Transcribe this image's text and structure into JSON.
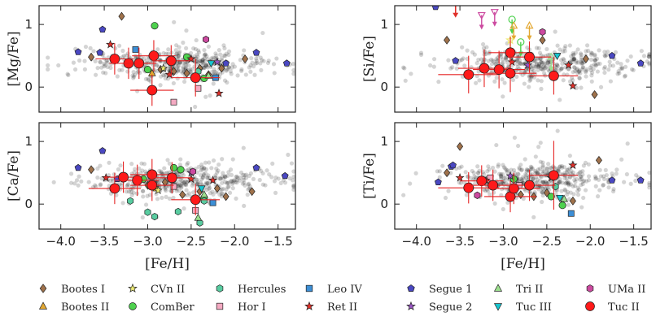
{
  "chart_data": {
    "type": "scatter",
    "x_label": "[Fe/H]",
    "x_range": [
      -4.25,
      -1.3
    ],
    "y_range": [
      -0.4,
      1.3
    ],
    "x_ticks": [
      -4.0,
      -3.5,
      -3.0,
      -2.5,
      -2.0,
      -1.5
    ],
    "x_tick_labels": [
      "−4.0",
      "−3.5",
      "−3.0",
      "−2.5",
      "−2.0",
      "−1.5"
    ],
    "y_ticks": [
      0,
      1
    ],
    "y_tick_labels": [
      "0",
      "1"
    ],
    "legend": [
      {
        "name": "Bootes I",
        "marker": "diamond",
        "color": "#a0724b"
      },
      {
        "name": "Bootes II",
        "marker": "triangle-up",
        "color": "#e3a832"
      },
      {
        "name": "CVn II",
        "marker": "star",
        "color": "#ecea74"
      },
      {
        "name": "ComBer",
        "marker": "circle",
        "color": "#4ed14e"
      },
      {
        "name": "Hercules",
        "marker": "hexagon",
        "color": "#58cca0"
      },
      {
        "name": "Hor I",
        "marker": "square",
        "color": "#f4aac2"
      },
      {
        "name": "Leo IV",
        "marker": "square",
        "color": "#3d8fd6"
      },
      {
        "name": "Ret II",
        "marker": "star",
        "color": "#e0302a"
      },
      {
        "name": "Segue 1",
        "marker": "pentagon",
        "color": "#4a48c2"
      },
      {
        "name": "Segue 2",
        "marker": "star",
        "color": "#9a55c4"
      },
      {
        "name": "Tri II",
        "marker": "triangle-up",
        "color": "#9ce08e"
      },
      {
        "name": "Tuc III",
        "marker": "triangle-down",
        "color": "#18c6cf"
      },
      {
        "name": "UMa II",
        "marker": "hexagon",
        "color": "#cc4aa0"
      },
      {
        "name": "Tuc II",
        "marker": "circle",
        "color": "#ff1a1a"
      }
    ],
    "background_seed": 7,
    "panels": [
      {
        "id": "mg",
        "y_label": "[Mg/Fe]",
        "tuc_ii": [
          {
            "x": -3.38,
            "y": 0.45,
            "xerr": 0.22,
            "yerr": 0.25
          },
          {
            "x": -3.22,
            "y": 0.38,
            "xerr": 0.22,
            "yerr": 0.25
          },
          {
            "x": -3.1,
            "y": 0.38,
            "xerr": 0.2,
            "yerr": 0.25
          },
          {
            "x": -2.93,
            "y": 0.5,
            "xerr": 0.25,
            "yerr": 0.25
          },
          {
            "x": -2.73,
            "y": 0.42,
            "xerr": 0.22,
            "yerr": 0.25
          },
          {
            "x": -2.45,
            "y": 0.15,
            "xerr": 0.28,
            "yerr": 0.3
          },
          {
            "x": -2.95,
            "y": -0.05,
            "xerr": 0.25,
            "yerr": 0.25
          }
        ],
        "others": [
          {
            "s": "Bootes I",
            "x": -3.3,
            "y": 1.13
          },
          {
            "s": "Bootes I",
            "x": -3.65,
            "y": 0.48
          },
          {
            "s": "Bootes I",
            "x": -2.85,
            "y": 0.28
          },
          {
            "s": "Bootes I",
            "x": -2.7,
            "y": 0.25
          },
          {
            "s": "Bootes I",
            "x": -2.55,
            "y": 0.22
          },
          {
            "s": "Bootes I",
            "x": -2.4,
            "y": 0.3
          },
          {
            "s": "Bootes I",
            "x": -2.3,
            "y": 0.2
          },
          {
            "s": "Bootes I",
            "x": -2.15,
            "y": 0.3
          },
          {
            "s": "Bootes I",
            "x": -1.88,
            "y": 0.45
          },
          {
            "s": "Bootes II",
            "x": -2.95,
            "y": 0.22
          },
          {
            "s": "CVn II",
            "x": -2.82,
            "y": 0.3
          },
          {
            "s": "ComBer",
            "x": -2.92,
            "y": 0.98
          },
          {
            "s": "ComBer",
            "x": -2.55,
            "y": 0.48
          },
          {
            "s": "ComBer",
            "x": -2.35,
            "y": 0.14
          },
          {
            "s": "ComBer",
            "x": -3.0,
            "y": 0.28
          },
          {
            "s": "Hercules",
            "x": -2.42,
            "y": 0.25
          },
          {
            "s": "Hor I",
            "x": -2.42,
            "y": -0.02
          },
          {
            "s": "Hor I",
            "x": -2.7,
            "y": -0.24
          },
          {
            "s": "Leo IV",
            "x": -3.14,
            "y": 0.6
          },
          {
            "s": "Leo IV",
            "x": -2.22,
            "y": 0.15
          },
          {
            "s": "Ret II",
            "x": -3.43,
            "y": 0.68
          },
          {
            "s": "Ret II",
            "x": -2.18,
            "y": -0.1
          },
          {
            "s": "Ret II",
            "x": -2.75,
            "y": 0.2
          },
          {
            "s": "Ret II",
            "x": -2.5,
            "y": 0.45
          },
          {
            "s": "Segue 1",
            "x": -3.8,
            "y": 0.56
          },
          {
            "s": "Segue 1",
            "x": -3.52,
            "y": 0.92
          },
          {
            "s": "Segue 1",
            "x": -3.55,
            "y": 0.55
          },
          {
            "s": "Segue 1",
            "x": -2.1,
            "y": 0.38
          },
          {
            "s": "Segue 1",
            "x": -1.75,
            "y": 0.55
          },
          {
            "s": "Segue 1",
            "x": -1.4,
            "y": 0.38
          },
          {
            "s": "Segue 2",
            "x": -2.2,
            "y": 0.4
          },
          {
            "s": "Tri II",
            "x": -2.3,
            "y": 0.18
          },
          {
            "s": "Tuc III",
            "x": -2.27,
            "y": 0.38
          },
          {
            "s": "UMa II",
            "x": -2.33,
            "y": 0.76
          }
        ]
      },
      {
        "id": "si",
        "y_label": "[Si/Fe]",
        "tuc_ii": [
          {
            "x": -3.4,
            "y": 0.2,
            "xerr": 0.35,
            "yerr": 0.3
          },
          {
            "x": -3.22,
            "y": 0.3,
            "xerr": 0.3,
            "yerr": 0.3
          },
          {
            "x": -3.05,
            "y": 0.28,
            "xerr": 0.3,
            "yerr": 0.3
          },
          {
            "x": -2.92,
            "y": 0.55,
            "xerr": 0.25,
            "yerr": 0.25
          },
          {
            "x": -2.7,
            "y": 0.48,
            "xerr": 0.25,
            "yerr": 0.25
          },
          {
            "x": -2.92,
            "y": 0.22,
            "xerr": 0.3,
            "yerr": 0.3
          },
          {
            "x": -2.42,
            "y": 0.18,
            "xerr": 0.28,
            "yerr": 0.3
          }
        ],
        "others": [
          {
            "s": "Bootes I",
            "x": -3.65,
            "y": 0.75
          },
          {
            "s": "Bootes I",
            "x": -2.55,
            "y": 0.75
          },
          {
            "s": "Bootes I",
            "x": -2.05,
            "y": 0.45
          },
          {
            "s": "Bootes I",
            "x": -1.95,
            "y": -0.12
          },
          {
            "s": "Ret II",
            "x": -2.2,
            "y": 0.02
          },
          {
            "s": "Ret II",
            "x": -2.25,
            "y": 0.35
          },
          {
            "s": "Ret II",
            "x": -2.9,
            "y": 0.4
          },
          {
            "s": "Segue 1",
            "x": -3.78,
            "y": 1.28
          },
          {
            "s": "Segue 1",
            "x": -3.55,
            "y": 0.42
          },
          {
            "s": "Segue 1",
            "x": -1.75,
            "y": 0.5
          },
          {
            "s": "Segue 1",
            "x": -1.42,
            "y": 0.38
          },
          {
            "s": "Segue 2",
            "x": -2.72,
            "y": 0.35
          },
          {
            "s": "UMa II",
            "x": -2.55,
            "y": 0.88
          },
          {
            "s": "Tuc III",
            "x": -2.38,
            "y": 0.5
          }
        ],
        "upper_limits": [
          {
            "x": -3.55,
            "y": 1.2,
            "color": "#e0302a",
            "marker": "arrow"
          },
          {
            "x": -3.25,
            "y": 1.15,
            "color": "#cc4aa0",
            "marker": "triangle-down"
          },
          {
            "x": -3.1,
            "y": 1.2,
            "color": "#cc4aa0",
            "marker": "triangle-down"
          },
          {
            "x": -2.9,
            "y": 1.08,
            "color": "#4ed14e",
            "marker": "circle"
          },
          {
            "x": -2.88,
            "y": 0.98,
            "color": "#e3a832",
            "marker": "triangle-up"
          },
          {
            "x": -2.7,
            "y": 0.98,
            "color": "#e3a832",
            "marker": "triangle-up"
          },
          {
            "x": -2.92,
            "y": 0.75,
            "color": "#ecea74",
            "marker": "star"
          },
          {
            "x": -2.8,
            "y": 0.72,
            "color": "#4ed14e",
            "marker": "circle"
          },
          {
            "x": -2.45,
            "y": 0.48,
            "color": "#9ce08e",
            "marker": "triangle-up"
          }
        ]
      },
      {
        "id": "ca",
        "y_label": "[Ca/Fe]",
        "tuc_ii": [
          {
            "x": -3.38,
            "y": 0.25,
            "xerr": 0.3,
            "yerr": 0.25
          },
          {
            "x": -3.28,
            "y": 0.43,
            "xerr": 0.22,
            "yerr": 0.25
          },
          {
            "x": -3.12,
            "y": 0.38,
            "xerr": 0.25,
            "yerr": 0.25
          },
          {
            "x": -2.95,
            "y": 0.47,
            "xerr": 0.25,
            "yerr": 0.25
          },
          {
            "x": -2.95,
            "y": 0.3,
            "xerr": 0.25,
            "yerr": 0.25
          },
          {
            "x": -2.72,
            "y": 0.42,
            "xerr": 0.22,
            "yerr": 0.25
          },
          {
            "x": -2.45,
            "y": 0.07,
            "xerr": 0.28,
            "yerr": 0.25
          }
        ],
        "others": [
          {
            "s": "Bootes I",
            "x": -3.65,
            "y": 0.55
          },
          {
            "s": "Bootes I",
            "x": -3.0,
            "y": 0.3
          },
          {
            "s": "Bootes I",
            "x": -2.8,
            "y": 0.35
          },
          {
            "s": "Bootes I",
            "x": -2.6,
            "y": 0.15
          },
          {
            "s": "Bootes I",
            "x": -2.4,
            "y": 0.2
          },
          {
            "s": "Bootes I",
            "x": -2.2,
            "y": 0.25
          },
          {
            "s": "Bootes I",
            "x": -2.1,
            "y": 0.12
          },
          {
            "s": "Bootes I",
            "x": -1.8,
            "y": 0.2
          },
          {
            "s": "Bootes II",
            "x": -2.9,
            "y": 0.25
          },
          {
            "s": "CVn II",
            "x": -2.88,
            "y": 0.22
          },
          {
            "s": "ComBer",
            "x": -2.7,
            "y": 0.58
          },
          {
            "s": "ComBer",
            "x": -2.62,
            "y": 0.55
          },
          {
            "s": "ComBer",
            "x": -2.35,
            "y": 0.1
          },
          {
            "s": "ComBer",
            "x": -3.05,
            "y": 0.4
          },
          {
            "s": "Hercules",
            "x": -3.2,
            "y": 0.05
          },
          {
            "s": "Hercules",
            "x": -3.0,
            "y": -0.13
          },
          {
            "s": "Hercules",
            "x": -2.92,
            "y": -0.2
          },
          {
            "s": "Hercules",
            "x": -2.65,
            "y": -0.12
          },
          {
            "s": "Hercules",
            "x": -2.4,
            "y": -0.3
          },
          {
            "s": "Hercules",
            "x": -2.35,
            "y": 0.05
          },
          {
            "s": "Hor I",
            "x": -2.7,
            "y": 0.28
          },
          {
            "s": "Hor I",
            "x": -2.45,
            "y": -0.1
          },
          {
            "s": "Leo IV",
            "x": -2.25,
            "y": 0.02
          },
          {
            "s": "Ret II",
            "x": -3.48,
            "y": 0.42
          },
          {
            "s": "Ret II",
            "x": -2.5,
            "y": 0.4
          },
          {
            "s": "Ret II",
            "x": -2.25,
            "y": 0.38
          },
          {
            "s": "Segue 1",
            "x": -3.8,
            "y": 0.58
          },
          {
            "s": "Segue 1",
            "x": -3.52,
            "y": 0.85
          },
          {
            "s": "Segue 1",
            "x": -3.35,
            "y": 0.4
          },
          {
            "s": "Segue 1",
            "x": -1.75,
            "y": 0.58
          },
          {
            "s": "Segue 1",
            "x": -1.42,
            "y": 0.45
          },
          {
            "s": "Segue 2",
            "x": -2.5,
            "y": 0.5
          },
          {
            "s": "Tri II",
            "x": -2.42,
            "y": -0.22
          },
          {
            "s": "Tri II",
            "x": -2.35,
            "y": 0.15
          },
          {
            "s": "Tuc III",
            "x": -2.38,
            "y": 0.25
          },
          {
            "s": "UMa II",
            "x": -2.48,
            "y": 0.52
          }
        ]
      },
      {
        "id": "ti",
        "y_label": "[Ti/Fe]",
        "tuc_ii": [
          {
            "x": -3.4,
            "y": 0.26,
            "xerr": 0.35,
            "yerr": 0.25
          },
          {
            "x": -3.25,
            "y": 0.37,
            "xerr": 0.25,
            "yerr": 0.25
          },
          {
            "x": -3.12,
            "y": 0.3,
            "xerr": 0.3,
            "yerr": 0.25
          },
          {
            "x": -2.92,
            "y": 0.12,
            "xerr": 0.3,
            "yerr": 0.25
          },
          {
            "x": -2.88,
            "y": 0.25,
            "xerr": 0.3,
            "yerr": 0.25
          },
          {
            "x": -2.7,
            "y": 0.3,
            "xerr": 0.3,
            "yerr": 0.25
          },
          {
            "x": -2.42,
            "y": 0.46,
            "xerr": 0.28,
            "yerr": 0.55
          }
        ],
        "others": [
          {
            "s": "Bootes I",
            "x": -3.5,
            "y": 0.92
          },
          {
            "s": "Bootes I",
            "x": -3.65,
            "y": 0.5
          },
          {
            "s": "Bootes I",
            "x": -2.8,
            "y": 0.15
          },
          {
            "s": "Bootes I",
            "x": -2.65,
            "y": 0.12
          },
          {
            "s": "Bootes I",
            "x": -2.5,
            "y": 0.18
          },
          {
            "s": "Bootes I",
            "x": -2.2,
            "y": 0.05
          },
          {
            "s": "Bootes I",
            "x": -1.9,
            "y": 0.7
          },
          {
            "s": "Bootes II",
            "x": -2.9,
            "y": 0.15
          },
          {
            "s": "CVn II",
            "x": -2.88,
            "y": 0.22
          },
          {
            "s": "ComBer",
            "x": -2.88,
            "y": 0.4
          },
          {
            "s": "ComBer",
            "x": -2.45,
            "y": 0.12
          },
          {
            "s": "ComBer",
            "x": -2.32,
            "y": -0.02
          },
          {
            "s": "Hercules",
            "x": -2.4,
            "y": 0.28
          },
          {
            "s": "Hor I",
            "x": -3.15,
            "y": 0.42
          },
          {
            "s": "Hor I",
            "x": -2.82,
            "y": 0.3
          },
          {
            "s": "Leo IV",
            "x": -2.22,
            "y": -0.15
          },
          {
            "s": "Ret II",
            "x": -3.5,
            "y": 0.42
          },
          {
            "s": "Ret II",
            "x": -3.2,
            "y": 0.38
          },
          {
            "s": "Ret II",
            "x": -2.45,
            "y": 0.42
          },
          {
            "s": "Ret II",
            "x": -2.2,
            "y": 0.62
          },
          {
            "s": "Segue 1",
            "x": -3.75,
            "y": 0.35
          },
          {
            "s": "Segue 1",
            "x": -3.6,
            "y": 0.6
          },
          {
            "s": "Segue 1",
            "x": -3.58,
            "y": 0.62
          },
          {
            "s": "Segue 1",
            "x": -1.75,
            "y": 0.38
          },
          {
            "s": "Segue 1",
            "x": -1.42,
            "y": 0.38
          },
          {
            "s": "Segue 2",
            "x": -2.92,
            "y": 0.45
          },
          {
            "s": "Tri II",
            "x": -2.3,
            "y": 0.08
          },
          {
            "s": "Tuc III",
            "x": -2.35,
            "y": 0.1
          },
          {
            "s": "UMa II",
            "x": -3.3,
            "y": 0.14
          }
        ]
      }
    ]
  }
}
